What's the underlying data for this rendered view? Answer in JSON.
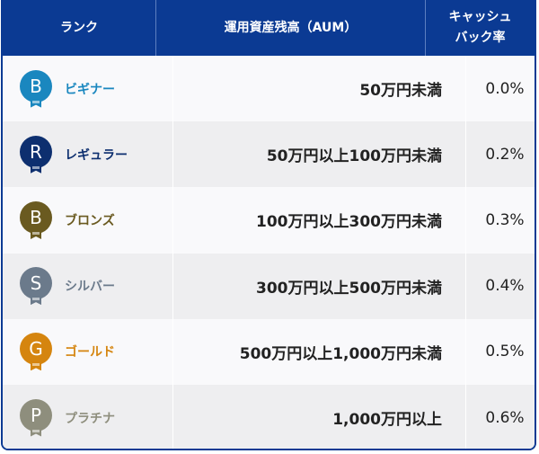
{
  "header": {
    "rank": "ランク",
    "aum": "運用資産残高（AUM）",
    "cashback_line1": "キャッシュ",
    "cashback_line2": "バック率"
  },
  "colors": {
    "header_bg": "#0b3a93"
  },
  "rows": [
    {
      "letter": "B",
      "name": "ビギナー",
      "aum": "50万円未満",
      "rate": "0.0%",
      "color": "#1a87bf"
    },
    {
      "letter": "R",
      "name": "レギュラー",
      "aum": "50万円以上100万円未満",
      "rate": "0.2%",
      "color": "#0d2f6f"
    },
    {
      "letter": "B",
      "name": "ブロンズ",
      "aum": "100万円以上300万円未満",
      "rate": "0.3%",
      "color": "#6a5a20"
    },
    {
      "letter": "S",
      "name": "シルバー",
      "aum": "300万円以上500万円未満",
      "rate": "0.4%",
      "color": "#6b7a8b"
    },
    {
      "letter": "G",
      "name": "ゴールド",
      "aum": "500万円以上1,000万円未満",
      "rate": "0.5%",
      "color": "#d5850f"
    },
    {
      "letter": "P",
      "name": "プラチナ",
      "aum": "1,000万円以上",
      "rate": "0.6%",
      "color": "#8e8e7d"
    }
  ]
}
